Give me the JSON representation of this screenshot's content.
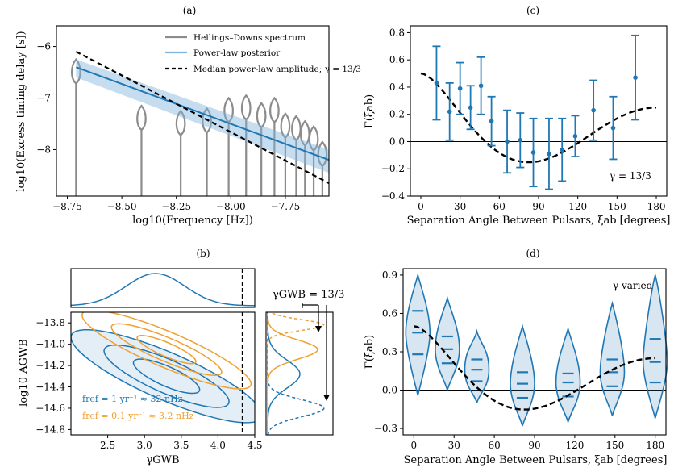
{
  "colors": {
    "blue": "#1f77b4",
    "lightblue": "#7fb3dc",
    "orange": "#f0a030",
    "gray": "#8c8c8c",
    "black": "#000000"
  },
  "chart_data": [
    {
      "id": "a",
      "type": "line",
      "panel_label": "(a)",
      "xlabel": "log10(Frequency [Hz])",
      "ylabel": "log10(Excess timing delay [s])",
      "xlim": [
        -8.8,
        -7.55
      ],
      "ylim": [
        -8.9,
        -5.6
      ],
      "xticks": [
        -8.75,
        -8.5,
        -8.25,
        -8.0,
        -7.75
      ],
      "xtick_labels": [
        "−8.75",
        "−8.50",
        "−8.25",
        "−8.00",
        "−7.75"
      ],
      "yticks": [
        -6,
        -7,
        -8
      ],
      "ytick_labels": [
        "−6",
        "−7",
        "−8"
      ],
      "legend": [
        "Hellings–Downs spectrum",
        "Power-law posterior",
        "Median power-law amplitude; γ = 13/3"
      ],
      "violins": {
        "x": [
          -8.71,
          -8.41,
          -8.23,
          -8.11,
          -8.01,
          -7.93,
          -7.86,
          -7.8,
          -7.75,
          -7.7,
          -7.66,
          -7.62,
          -7.58
        ],
        "peak": [
          -6.5,
          -7.4,
          -7.5,
          -7.45,
          -7.25,
          -7.2,
          -7.35,
          -7.25,
          -7.55,
          -7.6,
          -7.7,
          -7.8,
          -8.1
        ],
        "floor": [
          -8.9,
          -8.9,
          -8.9,
          -8.9,
          -8.9,
          -8.9,
          -8.9,
          -8.9,
          -8.9,
          -8.9,
          -8.9,
          -8.9,
          -8.9
        ]
      },
      "median_powerlaw": {
        "x": [
          -8.71,
          -7.55
        ],
        "y": [
          -6.1,
          -8.65
        ]
      },
      "posterior_band": {
        "x": [
          -8.71,
          -7.55
        ],
        "upper": [
          -6.25,
          -8.0
        ],
        "center": [
          -6.4,
          -8.2
        ],
        "lower": [
          -6.6,
          -8.45
        ]
      }
    },
    {
      "id": "b",
      "type": "contour",
      "panel_label": "(b)",
      "xlabel": "γGWB",
      "ylabel": "log10 AGWB",
      "xlim": [
        2.0,
        4.5
      ],
      "ylim": [
        -14.85,
        -13.7
      ],
      "xticks": [
        2.5,
        3.0,
        3.5,
        4.0,
        4.5
      ],
      "xtick_labels": [
        "2.5",
        "3.0",
        "3.5",
        "4.0",
        "4.5"
      ],
      "yticks": [
        -13.8,
        -14.0,
        -14.2,
        -14.4,
        -14.6,
        -14.8
      ],
      "ytick_labels": [
        "−13.8",
        "−14.0",
        "−14.2",
        "−14.4",
        "−14.6",
        "−14.8"
      ],
      "gamma_gwb_reference": 4.33,
      "annotation": "γGWB = 13/3",
      "legend": [
        "fref = 1 yr⁻¹ ≈ 32 nHz",
        "fref = 0.1 yr⁻¹ ≈ 3.2 nHz"
      ],
      "series": [
        {
          "name": "fref = 1 yr⁻¹ ≈ 32 nHz",
          "center": [
            3.3,
            -14.3
          ],
          "levels": [
            {
              "a": 0.45,
              "b": 0.1
            },
            {
              "a": 0.85,
              "b": 0.17
            },
            {
              "a": 1.3,
              "b": 0.24
            }
          ]
        },
        {
          "name": "fref = 0.1 yr⁻¹ ≈ 3.2 nHz",
          "center": [
            3.3,
            -14.05
          ],
          "levels": [
            {
              "a": 0.4,
              "b": 0.07
            },
            {
              "a": 0.75,
              "b": 0.12
            },
            {
              "a": 1.15,
              "b": 0.18
            }
          ]
        }
      ]
    },
    {
      "id": "c",
      "type": "scatter",
      "panel_label": "(c)",
      "xlabel": "Separation Angle Between Pulsars, ξab [degrees]",
      "ylabel": "Γ(ξab)",
      "xlim": [
        -8,
        188
      ],
      "ylim": [
        -0.4,
        0.85
      ],
      "xticks": [
        0,
        30,
        60,
        90,
        120,
        150,
        180
      ],
      "xtick_labels": [
        "0",
        "30",
        "60",
        "90",
        "120",
        "150",
        "180"
      ],
      "yticks": [
        -0.4,
        -0.2,
        0.0,
        0.2,
        0.4,
        0.6,
        0.8
      ],
      "ytick_labels": [
        "−0.4",
        "−0.2",
        "0.0",
        "0.2",
        "0.4",
        "0.6",
        "0.8"
      ],
      "annotation": "γ = 13/3",
      "x": [
        12,
        22,
        30,
        38,
        46,
        54,
        66,
        76,
        86,
        98,
        108,
        118,
        132,
        147,
        164
      ],
      "y": [
        0.43,
        0.22,
        0.39,
        0.25,
        0.41,
        0.15,
        0.0,
        0.01,
        -0.08,
        -0.09,
        -0.06,
        0.04,
        0.23,
        0.1,
        0.47
      ],
      "yerr": [
        0.27,
        0.21,
        0.19,
        0.16,
        0.21,
        0.18,
        0.23,
        0.2,
        0.25,
        0.26,
        0.23,
        0.15,
        0.22,
        0.23,
        0.31
      ]
    },
    {
      "id": "d",
      "type": "violin",
      "panel_label": "(d)",
      "xlabel": "Separation Angle Between Pulsars, ξab [degrees]",
      "ylabel": "Γ(ξab)",
      "xlim": [
        -8,
        188
      ],
      "ylim": [
        -0.35,
        0.95
      ],
      "xticks": [
        0,
        30,
        60,
        90,
        120,
        150,
        180
      ],
      "xtick_labels": [
        "0",
        "30",
        "60",
        "90",
        "120",
        "150",
        "180"
      ],
      "yticks": [
        -0.3,
        0.0,
        0.3,
        0.6,
        0.9
      ],
      "ytick_labels": [
        "−0.3",
        "0.0",
        "0.3",
        "0.6",
        "0.9"
      ],
      "annotation": "γ varied",
      "x": [
        3,
        25,
        47,
        81,
        115,
        148,
        180
      ],
      "median": [
        0.45,
        0.32,
        0.16,
        0.05,
        0.06,
        0.14,
        0.22
      ],
      "q_upper": [
        0.62,
        0.42,
        0.24,
        0.14,
        0.13,
        0.24,
        0.4
      ],
      "q_lower": [
        0.28,
        0.21,
        0.07,
        -0.06,
        -0.05,
        0.03,
        0.06
      ],
      "min": [
        -0.04,
        0.0,
        -0.1,
        -0.28,
        -0.25,
        -0.2,
        -0.22
      ],
      "max": [
        0.9,
        0.72,
        0.46,
        0.5,
        0.48,
        0.68,
        0.9
      ]
    }
  ]
}
